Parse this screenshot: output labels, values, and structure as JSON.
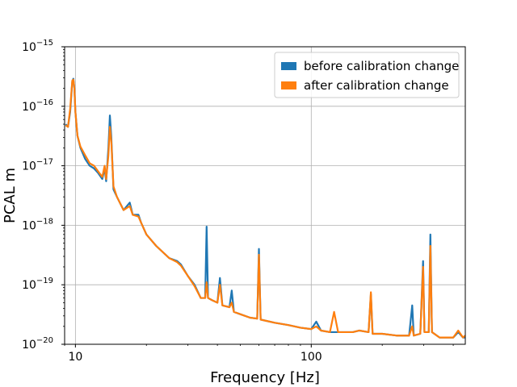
{
  "chart_data": {
    "type": "line",
    "xlabel": "Frequency [Hz]",
    "ylabel": "PCAL m",
    "xscale": "log",
    "yscale": "log",
    "xlim": [
      9,
      450
    ],
    "ylim": [
      1e-20,
      1e-15
    ],
    "grid": true,
    "legend_position": "top-right",
    "x_ticks": [
      {
        "value": 10,
        "label": "10"
      },
      {
        "value": 100,
        "label": "100"
      }
    ],
    "y_ticks": [
      {
        "value": 1e-20,
        "base": "10",
        "exp": "−20"
      },
      {
        "value": 1e-19,
        "base": "10",
        "exp": "−19"
      },
      {
        "value": 1e-18,
        "base": "10",
        "exp": "−18"
      },
      {
        "value": 1e-17,
        "base": "10",
        "exp": "−17"
      },
      {
        "value": 1e-16,
        "base": "10",
        "exp": "−16"
      },
      {
        "value": 1e-15,
        "base": "10",
        "exp": "−15"
      }
    ],
    "series": [
      {
        "name": "before calibration change",
        "color": "#1f77b4",
        "points": [
          [
            9.1,
            5e-17
          ],
          [
            9.3,
            4.5e-17
          ],
          [
            9.5,
            8e-17
          ],
          [
            9.7,
            2.6e-16
          ],
          [
            9.8,
            2.9e-16
          ],
          [
            9.9,
            2e-16
          ],
          [
            10.0,
            8e-17
          ],
          [
            10.2,
            3.2e-17
          ],
          [
            10.5,
            2e-17
          ],
          [
            11.0,
            1.3e-17
          ],
          [
            11.5,
            1e-17
          ],
          [
            12.0,
            9e-18
          ],
          [
            12.5,
            7.5e-18
          ],
          [
            13.0,
            6e-18
          ],
          [
            13.3,
            9e-18
          ],
          [
            13.5,
            5.5e-18
          ],
          [
            13.8,
            2e-17
          ],
          [
            14.0,
            7e-17
          ],
          [
            14.2,
            3e-17
          ],
          [
            14.5,
            4e-18
          ],
          [
            15.0,
            3e-18
          ],
          [
            16.0,
            1.8e-18
          ],
          [
            17.0,
            2.4e-18
          ],
          [
            17.5,
            1.5e-18
          ],
          [
            18.5,
            1.5e-18
          ],
          [
            19.0,
            1.1e-18
          ],
          [
            20.0,
            7e-19
          ],
          [
            22.0,
            4.5e-19
          ],
          [
            25.0,
            2.8e-19
          ],
          [
            27.0,
            2.5e-19
          ],
          [
            28.0,
            2.2e-19
          ],
          [
            30.0,
            1.4e-19
          ],
          [
            32.0,
            1e-19
          ],
          [
            34.0,
            6e-20
          ],
          [
            35.5,
            6e-20
          ],
          [
            36.0,
            9.5e-19
          ],
          [
            36.5,
            6e-20
          ],
          [
            38.0,
            5.5e-20
          ],
          [
            40.0,
            5e-20
          ],
          [
            41.0,
            1.3e-19
          ],
          [
            42.0,
            4.5e-20
          ],
          [
            45.0,
            4.2e-20
          ],
          [
            46.0,
            8e-20
          ],
          [
            47.0,
            3.5e-20
          ],
          [
            50.0,
            3.2e-20
          ],
          [
            55.0,
            2.8e-20
          ],
          [
            59.0,
            2.7e-20
          ],
          [
            60.0,
            4e-19
          ],
          [
            61.0,
            2.6e-20
          ],
          [
            70.0,
            2.3e-20
          ],
          [
            80.0,
            2.1e-20
          ],
          [
            90.0,
            1.9e-20
          ],
          [
            100.0,
            1.8e-20
          ],
          [
            105.0,
            2.4e-20
          ],
          [
            110.0,
            1.7e-20
          ],
          [
            120.0,
            1.6e-20
          ],
          [
            130.0,
            1.6e-20
          ],
          [
            150.0,
            1.6e-20
          ],
          [
            160.0,
            1.7e-20
          ],
          [
            175.0,
            1.6e-20
          ],
          [
            179.0,
            7e-20
          ],
          [
            182.0,
            1.5e-20
          ],
          [
            200.0,
            1.5e-20
          ],
          [
            230.0,
            1.4e-20
          ],
          [
            260.0,
            1.4e-20
          ],
          [
            268.0,
            4.5e-20
          ],
          [
            272.0,
            1.4e-20
          ],
          [
            290.0,
            1.5e-20
          ],
          [
            298.0,
            2.5e-19
          ],
          [
            302.0,
            1.6e-20
          ],
          [
            315.0,
            1.6e-20
          ],
          [
            320.0,
            7e-19
          ],
          [
            325.0,
            1.6e-20
          ],
          [
            350.0,
            1.3e-20
          ],
          [
            400.0,
            1.3e-20
          ],
          [
            420.0,
            1.6e-20
          ],
          [
            440.0,
            1.3e-20
          ],
          [
            450.0,
            1.3e-20
          ]
        ]
      },
      {
        "name": "after calibration change",
        "color": "#ff7f0e",
        "points": [
          [
            9.1,
            4.8e-17
          ],
          [
            9.3,
            4.5e-17
          ],
          [
            9.5,
            9e-17
          ],
          [
            9.7,
            2.7e-16
          ],
          [
            9.8,
            2.8e-16
          ],
          [
            9.9,
            2e-16
          ],
          [
            10.0,
            8e-17
          ],
          [
            10.2,
            3.2e-17
          ],
          [
            10.5,
            2.1e-17
          ],
          [
            11.0,
            1.5e-17
          ],
          [
            11.5,
            1.1e-17
          ],
          [
            12.0,
            1e-17
          ],
          [
            12.5,
            8e-18
          ],
          [
            13.0,
            6.5e-18
          ],
          [
            13.3,
            1e-17
          ],
          [
            13.5,
            6e-18
          ],
          [
            13.8,
            1.5e-17
          ],
          [
            14.0,
            4.5e-17
          ],
          [
            14.2,
            2.5e-17
          ],
          [
            14.5,
            4.5e-18
          ],
          [
            15.0,
            3e-18
          ],
          [
            16.0,
            1.8e-18
          ],
          [
            17.0,
            2.1e-18
          ],
          [
            17.5,
            1.5e-18
          ],
          [
            18.5,
            1.4e-18
          ],
          [
            19.0,
            1.1e-18
          ],
          [
            20.0,
            7e-19
          ],
          [
            22.0,
            4.5e-19
          ],
          [
            25.0,
            2.8e-19
          ],
          [
            27.0,
            2.4e-19
          ],
          [
            28.0,
            2.1e-19
          ],
          [
            30.0,
            1.4e-19
          ],
          [
            32.0,
            9.5e-20
          ],
          [
            34.0,
            6e-20
          ],
          [
            35.5,
            6e-20
          ],
          [
            36.0,
            1.1e-19
          ],
          [
            36.5,
            6e-20
          ],
          [
            38.0,
            5.5e-20
          ],
          [
            40.0,
            5e-20
          ],
          [
            41.0,
            1e-19
          ],
          [
            42.0,
            4.5e-20
          ],
          [
            45.0,
            4.2e-20
          ],
          [
            46.0,
            5e-20
          ],
          [
            47.0,
            3.5e-20
          ],
          [
            50.0,
            3.2e-20
          ],
          [
            55.0,
            2.8e-20
          ],
          [
            59.0,
            2.7e-20
          ],
          [
            60.0,
            3.2e-19
          ],
          [
            61.0,
            2.6e-20
          ],
          [
            70.0,
            2.3e-20
          ],
          [
            80.0,
            2.1e-20
          ],
          [
            90.0,
            1.9e-20
          ],
          [
            100.0,
            1.8e-20
          ],
          [
            105.0,
            2e-20
          ],
          [
            110.0,
            1.7e-20
          ],
          [
            120.0,
            1.6e-20
          ],
          [
            125.0,
            3.5e-20
          ],
          [
            130.0,
            1.6e-20
          ],
          [
            150.0,
            1.6e-20
          ],
          [
            160.0,
            1.7e-20
          ],
          [
            175.0,
            1.6e-20
          ],
          [
            179.0,
            7.5e-20
          ],
          [
            182.0,
            1.5e-20
          ],
          [
            200.0,
            1.5e-20
          ],
          [
            230.0,
            1.4e-20
          ],
          [
            260.0,
            1.4e-20
          ],
          [
            268.0,
            2e-20
          ],
          [
            272.0,
            1.4e-20
          ],
          [
            290.0,
            1.5e-20
          ],
          [
            298.0,
            2e-19
          ],
          [
            302.0,
            1.6e-20
          ],
          [
            315.0,
            1.6e-20
          ],
          [
            320.0,
            4.5e-19
          ],
          [
            325.0,
            1.6e-20
          ],
          [
            350.0,
            1.3e-20
          ],
          [
            400.0,
            1.3e-20
          ],
          [
            420.0,
            1.7e-20
          ],
          [
            440.0,
            1.3e-20
          ],
          [
            450.0,
            1.4e-20
          ]
        ]
      }
    ]
  }
}
